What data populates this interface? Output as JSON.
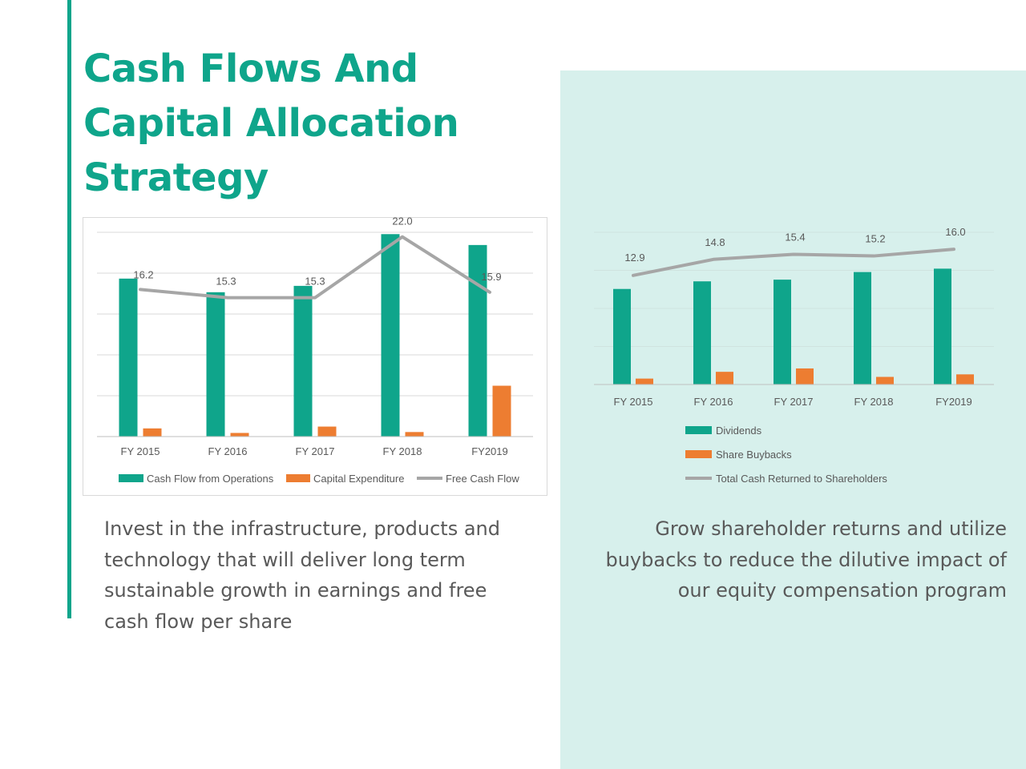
{
  "slide": {
    "title_lines": [
      "Cash Flows And",
      "Capital Allocation",
      "Strategy"
    ],
    "left_caption": "Invest in the infrastructure, products and technology that will deliver long term sustainable growth in earnings and free cash flow per share",
    "right_caption": "Grow shareholder returns and utilize buybacks to reduce the dilutive impact of our equity compensation program"
  },
  "colors": {
    "accent": "#0fa58b",
    "orange": "#ed7d31",
    "gray_line": "#a6a6a6",
    "panel": "#d7f0ec",
    "text": "#595959"
  },
  "chart_data": [
    {
      "type": "bar",
      "categories": [
        "FY 2015",
        "FY 2016",
        "FY 2017",
        "FY 2018",
        "FY2019"
      ],
      "ylim": [
        0,
        22.5
      ],
      "grid": true,
      "legend_placement": "bottom",
      "series": [
        {
          "name": "Cash Flow from Operations",
          "type": "bar",
          "values": [
            17.4,
            15.9,
            16.6,
            22.3,
            21.1
          ]
        },
        {
          "name": "Capital Expenditure",
          "type": "bar",
          "values": [
            0.9,
            0.4,
            1.1,
            0.5,
            5.6
          ]
        },
        {
          "name": "Free Cash Flow",
          "type": "line",
          "values": [
            16.2,
            15.3,
            15.3,
            22.0,
            15.9
          ],
          "labels": [
            "16.2",
            "15.3",
            "15.3",
            "22.0",
            "15.9"
          ]
        }
      ]
    },
    {
      "type": "bar",
      "categories": [
        "FY 2015",
        "FY 2016",
        "FY 2017",
        "FY 2018",
        "FY2019"
      ],
      "ylim": [
        0,
        18
      ],
      "grid": true,
      "legend_placement": "bottom",
      "series": [
        {
          "name": "Dividends",
          "type": "bar",
          "values": [
            11.3,
            12.2,
            12.4,
            13.3,
            13.7
          ]
        },
        {
          "name": "Share Buybacks",
          "type": "bar",
          "values": [
            0.7,
            1.5,
            1.9,
            0.9,
            1.2
          ]
        },
        {
          "name": "Total Cash Returned to Shareholders",
          "type": "line",
          "values": [
            12.9,
            14.8,
            15.4,
            15.2,
            16.0
          ],
          "labels": [
            "12.9",
            "14.8",
            "15.4",
            "15.2",
            "16.0"
          ]
        }
      ]
    }
  ]
}
